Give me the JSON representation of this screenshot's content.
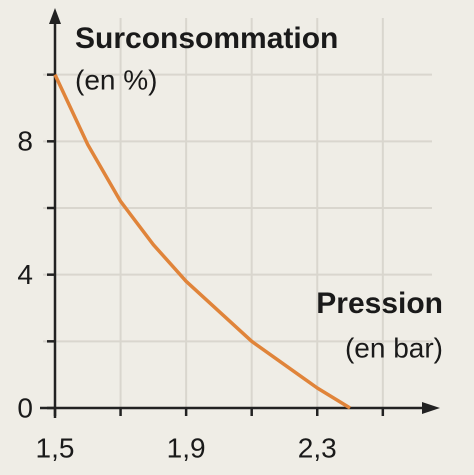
{
  "chart_data": {
    "type": "line",
    "y_label": "Surconsommation",
    "y_unit": "(en %)",
    "x_label": "Pression",
    "x_unit": "(en bar)",
    "x": [
      1.5,
      1.6,
      1.7,
      1.8,
      1.9,
      2.0,
      2.1,
      2.2,
      2.3,
      2.4
    ],
    "series": [
      {
        "color": "#e0843a",
        "values": [
          10,
          7.9,
          6.2,
          4.9,
          3.8,
          2.9,
          2.0,
          1.3,
          0.6,
          0
        ]
      }
    ],
    "xlim": [
      1.5,
      2.65
    ],
    "ylim": [
      0,
      12
    ],
    "xticks": [
      {
        "value": 1.5,
        "label": "1,5"
      },
      {
        "value": 1.9,
        "label": "1,9"
      },
      {
        "value": 2.3,
        "label": "2,3"
      }
    ],
    "yticks": [
      0,
      4,
      8
    ],
    "minor_xticks": [
      1.7,
      2.1,
      2.5
    ],
    "minor_yticks": [
      2,
      6,
      10
    ],
    "grid": true
  }
}
